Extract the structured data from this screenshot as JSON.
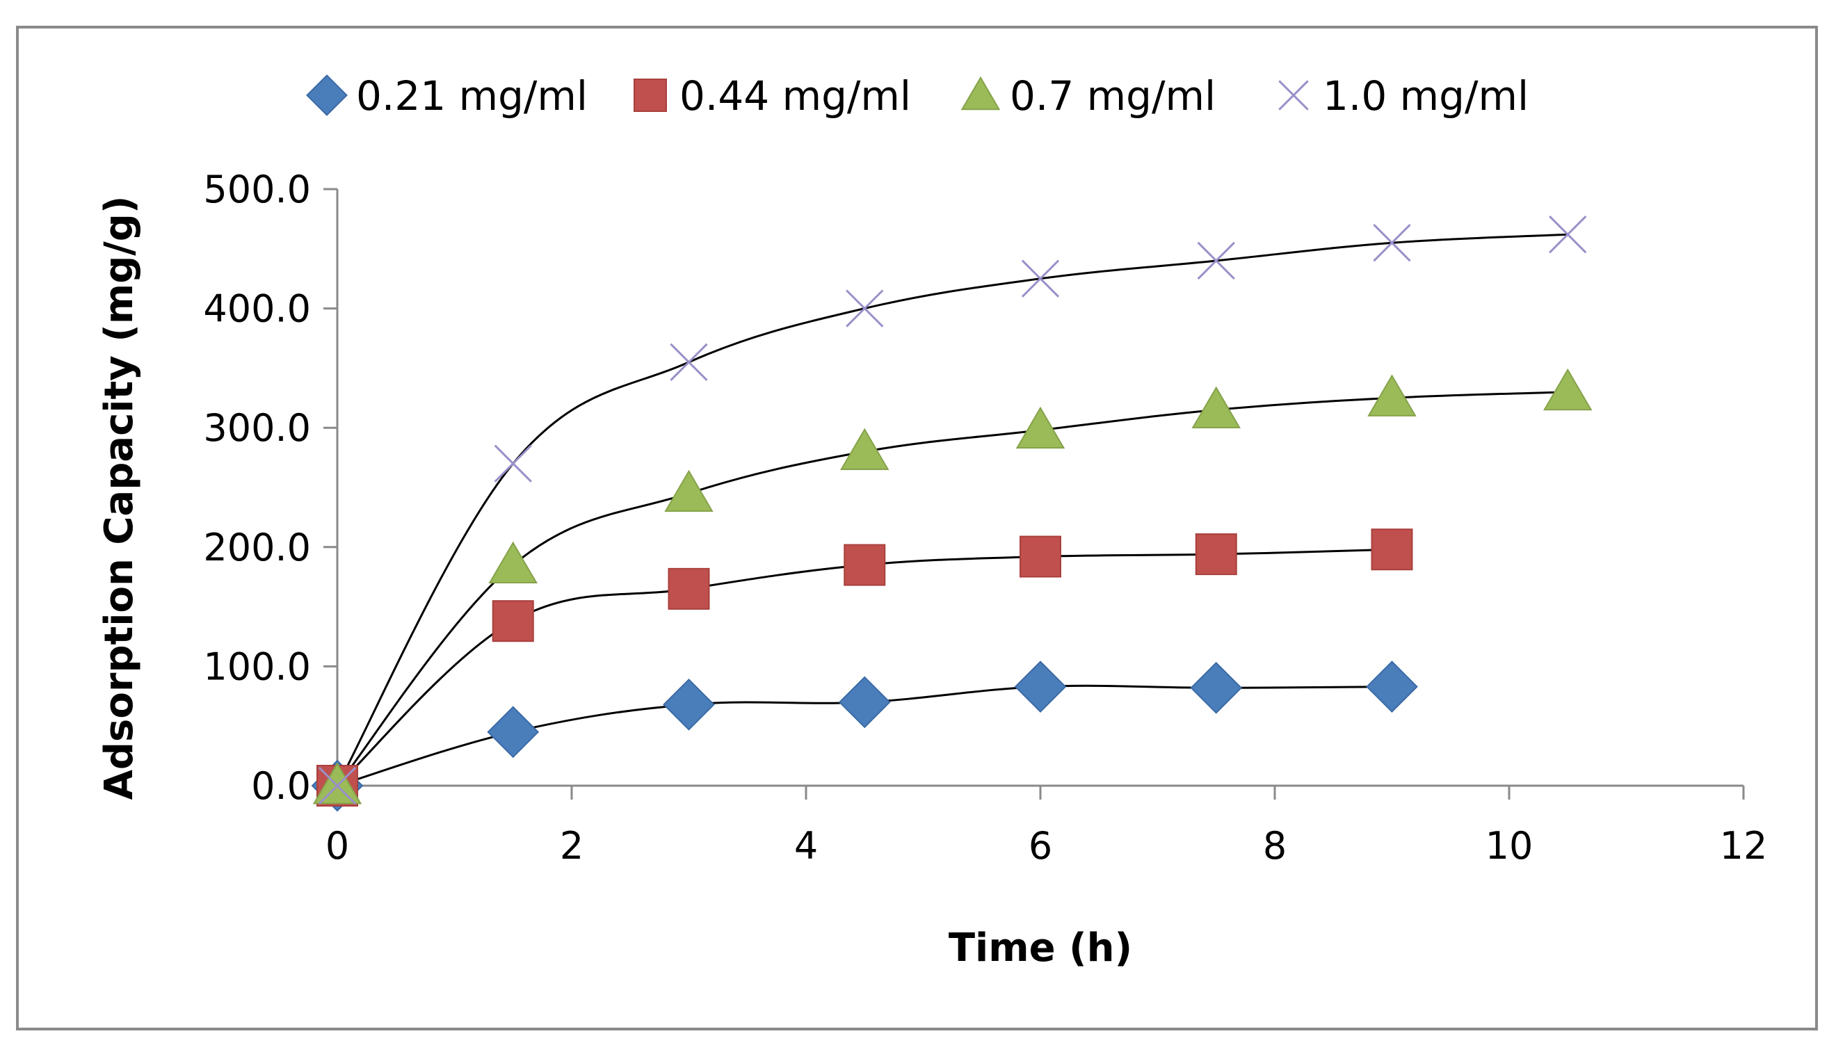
{
  "chart_data": {
    "type": "scatter",
    "title": "",
    "xlabel": "Time (h)",
    "ylabel": "Adsorption Capacity (mg/g)",
    "xlim": [
      0,
      12
    ],
    "ylim": [
      0,
      500
    ],
    "xticks": [
      "0",
      "2",
      "4",
      "6",
      "8",
      "10",
      "12"
    ],
    "yticks": [
      "0.0",
      "100.0",
      "200.0",
      "300.0",
      "400.0",
      "500.0"
    ],
    "grid": false,
    "legend_position": "top",
    "trendlines": true,
    "series": [
      {
        "name": "0.21 mg/ml",
        "marker": "diamond",
        "color": "#4a7ebb",
        "x": [
          0,
          1.5,
          3,
          4.5,
          6,
          7.5,
          9
        ],
        "y": [
          0,
          45,
          68,
          70,
          83,
          82,
          83
        ]
      },
      {
        "name": "0.44 mg/ml",
        "marker": "square",
        "color": "#c0504d",
        "x": [
          0,
          1.5,
          3,
          4.5,
          6,
          7.5,
          9
        ],
        "y": [
          0,
          138,
          165,
          185,
          192,
          194,
          198
        ]
      },
      {
        "name": "0.7 mg/ml",
        "marker": "triangle",
        "color": "#9bbb59",
        "x": [
          0,
          1.5,
          3,
          4.5,
          6,
          7.5,
          9,
          10.5
        ],
        "y": [
          0,
          185,
          245,
          280,
          298,
          315,
          325,
          330
        ]
      },
      {
        "name": "1.0 mg/ml",
        "marker": "x",
        "color": "#9b8fc9",
        "x": [
          0,
          1.5,
          3,
          4.5,
          6,
          7.5,
          9,
          10.5
        ],
        "y": [
          0,
          270,
          355,
          400,
          425,
          440,
          455,
          462
        ]
      }
    ]
  }
}
